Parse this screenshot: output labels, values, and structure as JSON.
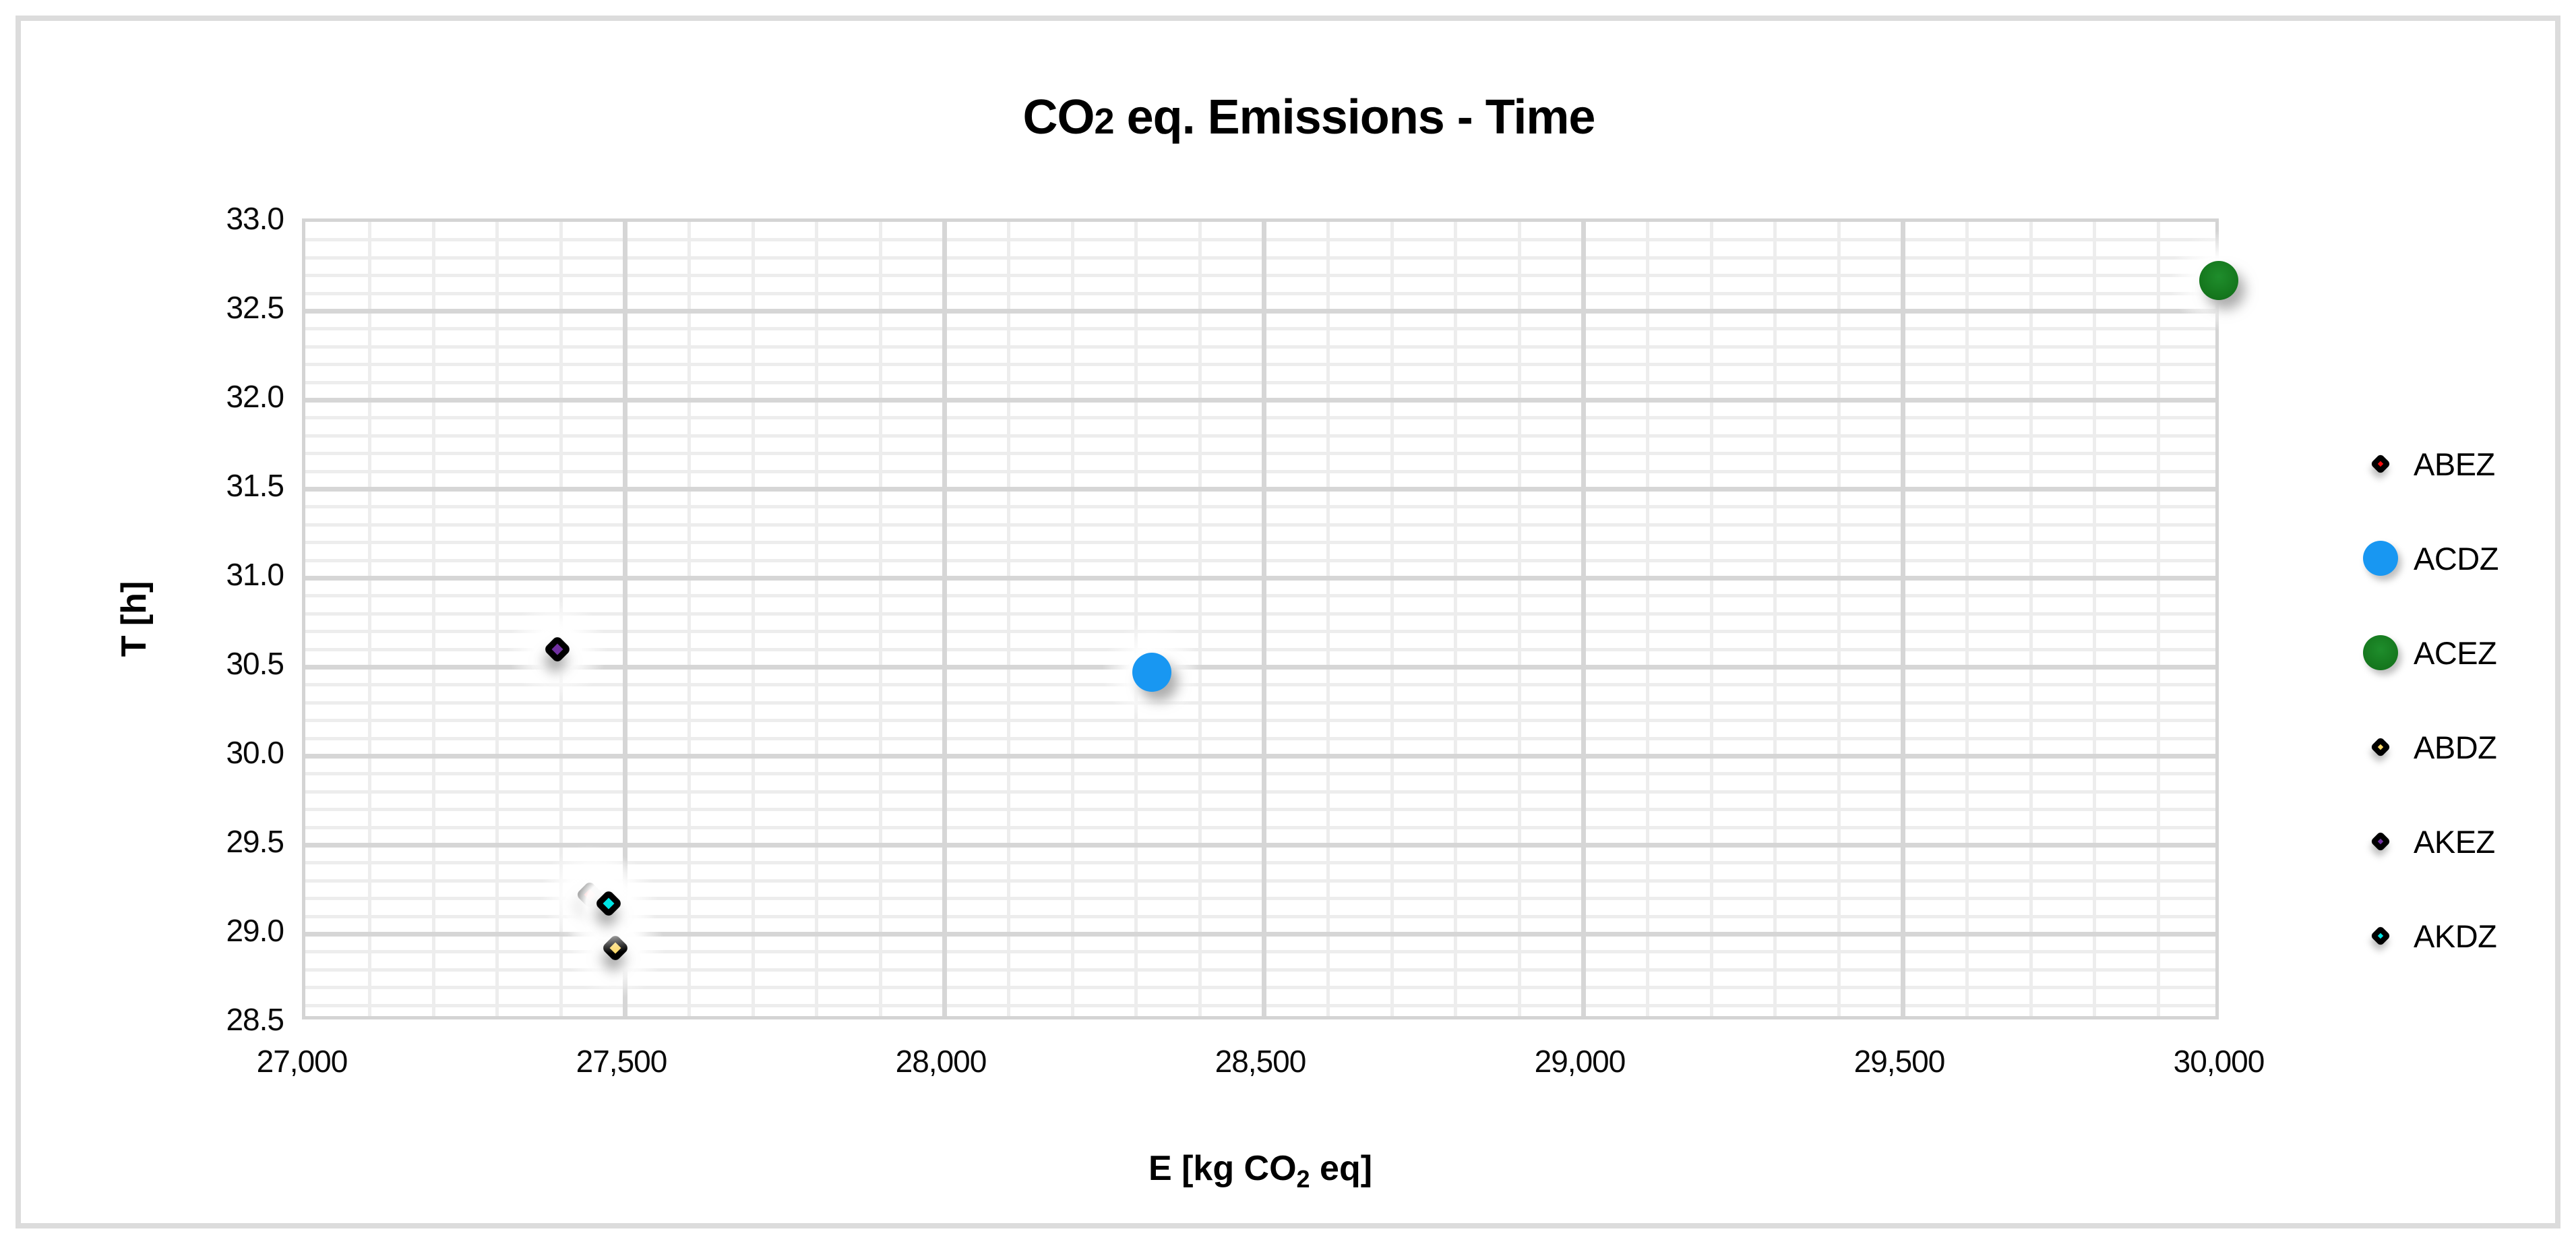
{
  "title": {
    "pre": "CO",
    "sub": "2",
    "post": " eq. Emissions - Time"
  },
  "axes": {
    "y_title": "T [h]",
    "x_title_pre": "E [kg CO",
    "x_title_sub": "2",
    "x_title_post": " eq]"
  },
  "colors": {
    "grid_minor": "#EDEDED",
    "grid_major": "#D6D6D6",
    "plot_border": "#D4D4D4",
    "outer_border": "#DCDCDC",
    "text": "#000000"
  },
  "chart_data": {
    "type": "scatter",
    "title": "CO2 eq. Emissions - Time",
    "xlabel": "E [kg CO2 eq]",
    "ylabel": "T [h]",
    "xlim": [
      27000,
      30000
    ],
    "ylim": [
      28.5,
      33.0
    ],
    "x_major_step": 500,
    "x_minor_step": 100,
    "y_major_step": 0.5,
    "y_minor_step": 0.1,
    "grid": "major+minor",
    "legend_position": "right",
    "x_ticks": [
      {
        "v": 27000,
        "label": "27,000"
      },
      {
        "v": 27500,
        "label": "27,500"
      },
      {
        "v": 28000,
        "label": "28,000"
      },
      {
        "v": 28500,
        "label": "28,500"
      },
      {
        "v": 29000,
        "label": "29,000"
      },
      {
        "v": 29500,
        "label": "29,500"
      },
      {
        "v": 30000,
        "label": "30,000"
      }
    ],
    "y_ticks": [
      {
        "v": 33.0,
        "label": "33.0"
      },
      {
        "v": 32.5,
        "label": "32.5"
      },
      {
        "v": 32.0,
        "label": "32.0"
      },
      {
        "v": 31.5,
        "label": "31.5"
      },
      {
        "v": 31.0,
        "label": "31.0"
      },
      {
        "v": 30.5,
        "label": "30.5"
      },
      {
        "v": 30.0,
        "label": "30.0"
      },
      {
        "v": 29.5,
        "label": "29.5"
      },
      {
        "v": 29.0,
        "label": "29.0"
      },
      {
        "v": 28.5,
        "label": "28.5"
      }
    ],
    "series": [
      {
        "name": "ABEZ",
        "marker": "diamond",
        "color": "#F80D0D",
        "x": 27450,
        "y": 29.2
      },
      {
        "name": "ACDZ",
        "marker": "circle",
        "color": "#1897F2",
        "x": 28330,
        "y": 30.45
      },
      {
        "name": "ACEZ",
        "marker": "circle",
        "color": "#14751C",
        "x": 30000,
        "y": 32.65
      },
      {
        "name": "ABDZ",
        "marker": "diamond",
        "color": "#FFD966",
        "x": 27490,
        "y": 28.9
      },
      {
        "name": "AKEZ",
        "marker": "diamond",
        "color": "#7030A0",
        "x": 27400,
        "y": 30.58
      },
      {
        "name": "AKDZ",
        "marker": "diamond",
        "color": "#00E5E5",
        "x": 27480,
        "y": 29.15
      }
    ]
  }
}
